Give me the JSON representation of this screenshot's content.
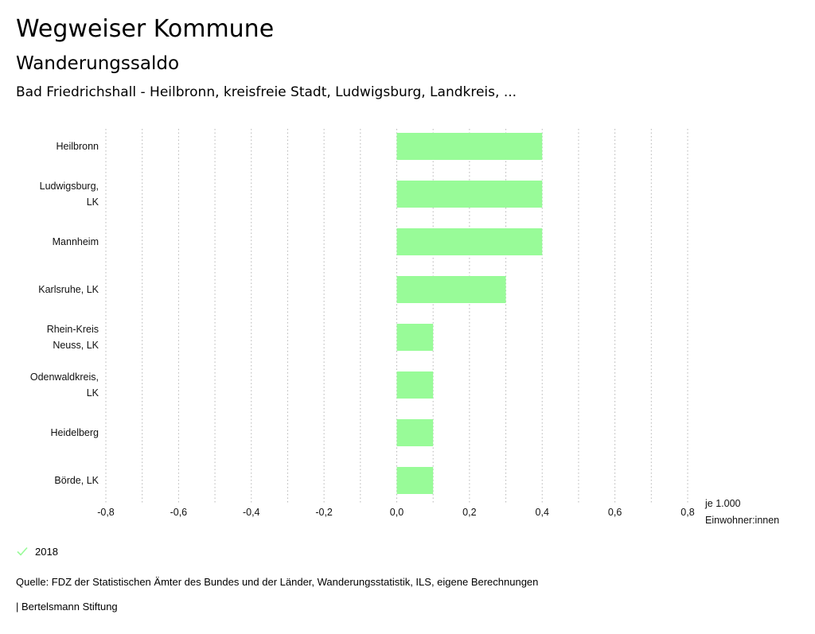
{
  "header": {
    "title": "Wegweiser Kommune",
    "subtitle": "Wanderungssaldo",
    "region": "Bad Friedrichshall - Heilbronn, kreisfreie Stadt, Ludwigsburg, Landkreis, ..."
  },
  "chart_data": {
    "type": "bar",
    "orientation": "horizontal",
    "categories": [
      [
        "Heilbronn"
      ],
      [
        "Ludwigsburg,",
        "LK"
      ],
      [
        "Mannheim"
      ],
      [
        "Karlsruhe, LK"
      ],
      [
        "Rhein-Kreis",
        "Neuss, LK"
      ],
      [
        "Odenwaldkreis,",
        "LK"
      ],
      [
        "Heidelberg"
      ],
      [
        "Börde, LK"
      ]
    ],
    "series": [
      {
        "name": "2018",
        "color": "#98fb98",
        "values": [
          0.4,
          0.4,
          0.4,
          0.3,
          0.1,
          0.1,
          0.1,
          0.1
        ]
      }
    ],
    "xlim": [
      -0.8,
      0.8
    ],
    "xticks": [
      -0.8,
      -0.6,
      -0.4,
      -0.2,
      0.0,
      0.2,
      0.4,
      0.6,
      0.8
    ],
    "xtick_labels": [
      "-0,8",
      "-0,6",
      "-0,4",
      "-0,2",
      "0,0",
      "0,2",
      "0,4",
      "0,6",
      "0,8"
    ],
    "xlabel": [
      "je 1.000",
      "Einwohner:innen"
    ],
    "grid": true,
    "legend_position": "bottom-left"
  },
  "legend": {
    "label": "2018",
    "color": "#98fb98",
    "icon": "check-icon"
  },
  "footer": {
    "source": "Quelle: FDZ der Statistischen Ämter des Bundes und der Länder, Wanderungsstatistik, ILS, eigene Berechnungen",
    "credit": "| Bertelsmann Stiftung"
  }
}
